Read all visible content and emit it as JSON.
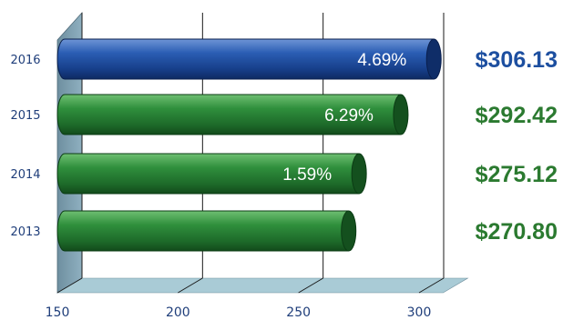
{
  "chart_data": {
    "type": "bar",
    "orientation": "horizontal",
    "categories": [
      "2016",
      "2015",
      "2014",
      "2013"
    ],
    "values": [
      306.13,
      292.42,
      275.12,
      270.8
    ],
    "value_labels": [
      "$306.13",
      "$292.42",
      "$275.12",
      "$270.80"
    ],
    "percent_labels": [
      "4.69%",
      "6.29%",
      "1.59%",
      ""
    ],
    "bar_colors": [
      "#1d4fa0",
      "#2a8a3c",
      "#2a8a3c",
      "#2a8a3c"
    ],
    "value_label_colors": [
      "#1d4fa0",
      "#2b7a30",
      "#2b7a30",
      "#2b7a30"
    ],
    "xlim": [
      150,
      310
    ],
    "xticks": [
      150,
      200,
      250,
      300
    ],
    "xtick_labels": [
      "150",
      "200",
      "250",
      "300"
    ],
    "grid": true,
    "style": "3d-cylinder",
    "title": "",
    "xlabel": "",
    "ylabel": ""
  }
}
